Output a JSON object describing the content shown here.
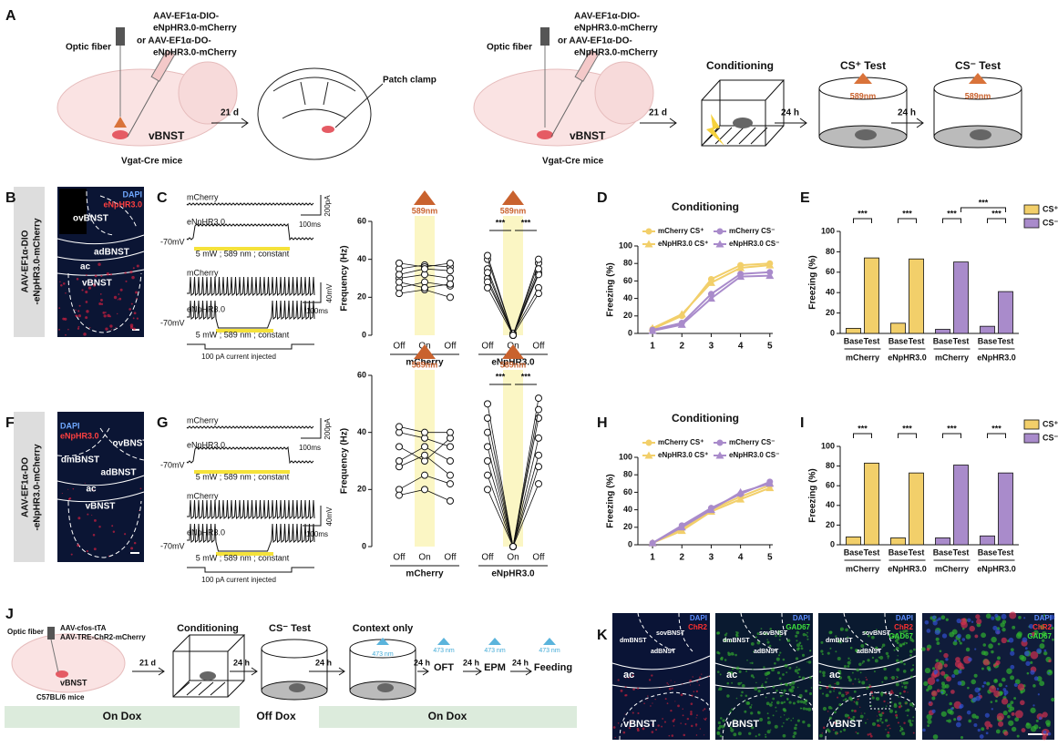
{
  "panel_labels": [
    "A",
    "B",
    "C",
    "D",
    "E",
    "F",
    "G",
    "H",
    "I",
    "J",
    "K"
  ],
  "a": {
    "left": {
      "optic_fiber": "Optic fiber",
      "virus": [
        "AAV-EF1α-DIO-",
        "eNpHR3.0-mCherry",
        "or AAV-EF1α-DO-",
        "eNpHR3.0-mCherry"
      ],
      "region": "vBNST",
      "mice": "Vgat-Cre mice",
      "delay": "21 d",
      "patch": "Patch clamp"
    },
    "right": {
      "optic_fiber": "Optic fiber",
      "virus": [
        "AAV-EF1α-DIO-",
        "eNpHR3.0-mCherry",
        "or AAV-EF1α-DO-",
        "eNpHR3.0-mCherry"
      ],
      "region": "vBNST",
      "mice": "Vgat-Cre mice",
      "delay": "21 d",
      "steps": [
        "Conditioning",
        "CS⁺ Test",
        "CS⁻ Test"
      ],
      "light": [
        "589nm",
        "589nm"
      ],
      "gaps": [
        "24 h",
        "24 h"
      ]
    }
  },
  "b": {
    "stains": [
      "DAPI",
      "eNpHR3.0"
    ],
    "regions": [
      "ovBNST",
      "adBNST",
      "ac",
      "vBNST"
    ],
    "construct": [
      "AAV-EF1α-DIO",
      "-eNpHR3.0-mCherry"
    ]
  },
  "c": {
    "traces": [
      "mCherry",
      "eNpHR3.0",
      "mCherry",
      "eNpHR3.0"
    ],
    "baselines": [
      "-70mV",
      "-70mV"
    ],
    "stimuli": [
      "5 mW ; 589 nm ; constant",
      "5 mW ; 589 nm ; constant"
    ],
    "scales": [
      "200pA",
      "100ms",
      "40mV",
      "100ms"
    ],
    "current": "100 pA current injected"
  },
  "f": {
    "stains": [
      "DAPI",
      "eNpHR3.0"
    ],
    "regions": [
      "ovBNST",
      "dmBNST",
      "adBNST",
      "ac",
      "vBNST"
    ],
    "construct": [
      "AAV-EF1α-DO",
      "-eNpHR3.0-mCherry"
    ]
  },
  "g": {
    "traces": [
      "mCherry",
      "eNpHR3.0",
      "mCherry",
      "eNpHR3.0"
    ],
    "baselines": [
      "-70mV",
      "-70mV"
    ],
    "stimuli": [
      "5 mW ; 589 nm ; constant",
      "5 mW ; 589 nm ; constant"
    ],
    "scales": [
      "200pA",
      "100ms",
      "40mV",
      "100ms"
    ],
    "current": "100 pA current injected"
  },
  "j": {
    "optic_fiber": "Optic fiber",
    "virus": [
      "AAV-cfos-tTA",
      "AAV-TRE-ChR2-mCherry"
    ],
    "region": "vBNST",
    "mice": "C57BL/6 mice",
    "delay": "21 d",
    "steps": [
      "Conditioning",
      "CS⁻ Test",
      "Context only",
      "OFT",
      "EPM",
      "Feeding"
    ],
    "gaps": [
      "24 h",
      "24 h",
      "24 h",
      "24 h",
      "24 h"
    ],
    "light": [
      "473 nm",
      "473 nm",
      "473 nm",
      "473 nm"
    ],
    "dox": [
      "On Dox",
      "Off Dox",
      "On Dox"
    ]
  },
  "k": {
    "images": [
      {
        "stains": [
          "DAPI",
          "ChR2"
        ],
        "colors": [
          "#5b8cff",
          "#ff3030"
        ],
        "regions": [
          "dmBNST",
          "sovBNST",
          "adBNST",
          "ac",
          "vBNST"
        ]
      },
      {
        "stains": [
          "DAPI",
          "GAD67"
        ],
        "colors": [
          "#5b8cff",
          "#3de03d"
        ],
        "regions": [
          "dmBNST",
          "sovBNST",
          "adBNST",
          "ac",
          "vBNST"
        ]
      },
      {
        "stains": [
          "DAPI",
          "ChR2",
          "GAD67"
        ],
        "colors": [
          "#5b8cff",
          "#ff3030",
          "#3de03d"
        ],
        "regions": [
          "dmBNST",
          "sovBNST",
          "adBNST",
          "ac",
          "vBNST"
        ]
      },
      {
        "stains": [
          "DAPI",
          "ChR2",
          "GAD67"
        ],
        "colors": [
          "#5b8cff",
          "#ff3030",
          "#3de03d"
        ]
      }
    ]
  },
  "chart_data": [
    {
      "type": "paired",
      "ylabel": "Frequency (Hz)",
      "ylim": [
        0,
        60
      ],
      "yticks": [
        0,
        20,
        40,
        60
      ],
      "band_color": "#fbf6c4",
      "light_color": "#c9622e",
      "groups": [
        {
          "name": "mCherry",
          "light": "589nm",
          "categories": [
            "Off",
            "On",
            "Off"
          ],
          "cells": [
            [
              30,
              32,
              30
            ],
            [
              25,
              28,
              26
            ],
            [
              35,
              37,
              36
            ],
            [
              22,
              24,
              20
            ],
            [
              38,
              36,
              38
            ],
            [
              28,
              25,
              27
            ],
            [
              32,
              35,
              34
            ]
          ]
        },
        {
          "name": "eNpHR3.0",
          "light": "589nm",
          "categories": [
            "Off",
            "On",
            "Off"
          ],
          "significance": [
            "***",
            "***"
          ],
          "cells": [
            [
              40,
              0,
              38
            ],
            [
              35,
              0,
              33
            ],
            [
              30,
              0,
              32
            ],
            [
              28,
              1,
              25
            ],
            [
              42,
              0,
              40
            ],
            [
              33,
              0,
              35
            ],
            [
              25,
              0,
              22
            ]
          ]
        }
      ]
    },
    {
      "type": "line",
      "title": "Conditioning",
      "ylabel": "Freezing (%)",
      "x": [
        1,
        2,
        3,
        4,
        5
      ],
      "xlim": [
        0.5,
        5.1
      ],
      "xticks": [
        1,
        2,
        3,
        4,
        5
      ],
      "ylim": [
        0,
        100
      ],
      "yticks": [
        0,
        20,
        40,
        60,
        80,
        100
      ],
      "series": [
        {
          "name": "mCherry CS⁺",
          "color": "#f2cf6a",
          "marker": "circle",
          "values": [
            5,
            20,
            62,
            78,
            80
          ]
        },
        {
          "name": "eNpHR3.0 CS⁺",
          "color": "#f2cf6a",
          "marker": "triangle",
          "values": [
            6,
            22,
            58,
            75,
            78
          ]
        },
        {
          "name": "mCherry CS⁻",
          "color": "#a98bcb",
          "marker": "circle",
          "values": [
            4,
            12,
            45,
            68,
            70
          ]
        },
        {
          "name": "eNpHR3.0 CS⁻",
          "color": "#a98bcb",
          "marker": "triangle",
          "values": [
            3,
            10,
            40,
            65,
            66
          ]
        }
      ]
    },
    {
      "type": "bar",
      "ylabel": "Freezing (%)",
      "ylim": [
        0,
        100
      ],
      "yticks": [
        0,
        20,
        40,
        60,
        80,
        100
      ],
      "categories": [
        "Base",
        "Test",
        "Base",
        "Test",
        "Base",
        "Test",
        "Base",
        "Test"
      ],
      "groups": [
        "mCherry",
        "eNpHR3.0",
        "mCherry",
        "eNpHR3.0"
      ],
      "values": [
        5,
        74,
        10,
        73,
        4,
        70,
        7,
        41
      ],
      "colors": [
        "#f2cf6a",
        "#f2cf6a",
        "#f2cf6a",
        "#f2cf6a",
        "#a98bcb",
        "#a98bcb",
        "#a98bcb",
        "#a98bcb"
      ],
      "significance": [
        "***",
        "***",
        "***",
        "***",
        "***"
      ],
      "legend": [
        {
          "name": "CS⁺",
          "color": "#f2cf6a"
        },
        {
          "name": "CS⁻",
          "color": "#a98bcb"
        }
      ]
    },
    {
      "type": "paired",
      "ylabel": "Frequency (Hz)",
      "ylim": [
        0,
        60
      ],
      "yticks": [
        0,
        20,
        40,
        60
      ],
      "band_color": "#fbf6c4",
      "light_color": "#c9622e",
      "groups": [
        {
          "name": "mCherry",
          "light": "589nm",
          "categories": [
            "Off",
            "On",
            "Off"
          ],
          "cells": [
            [
              40,
              38,
              35
            ],
            [
              35,
              30,
              38
            ],
            [
              28,
              32,
              25
            ],
            [
              20,
              25,
              22
            ],
            [
              42,
              40,
              40
            ],
            [
              30,
              35,
              30
            ],
            [
              18,
              20,
              16
            ]
          ]
        },
        {
          "name": "eNpHR3.0",
          "light": "589nm",
          "categories": [
            "Off",
            "On",
            "Off"
          ],
          "significance": [
            "***",
            "***"
          ],
          "cells": [
            [
              50,
              0,
              52
            ],
            [
              40,
              0,
              45
            ],
            [
              35,
              0,
              38
            ],
            [
              30,
              0,
              32
            ],
            [
              45,
              0,
              48
            ],
            [
              25,
              0,
              28
            ],
            [
              20,
              0,
              22
            ]
          ]
        }
      ]
    },
    {
      "type": "line",
      "title": "Conditioning",
      "ylabel": "Freezing (%)",
      "x": [
        1,
        2,
        3,
        4,
        5
      ],
      "xlim": [
        0.5,
        5.1
      ],
      "xticks": [
        1,
        2,
        3,
        4,
        5
      ],
      "ylim": [
        0,
        100
      ],
      "yticks": [
        0,
        20,
        40,
        60,
        80,
        100
      ],
      "series": [
        {
          "name": "mCherry CS⁺",
          "color": "#f2cf6a",
          "marker": "circle",
          "values": [
            2,
            18,
            40,
            55,
            68
          ]
        },
        {
          "name": "eNpHR3.0 CS⁺",
          "color": "#f2cf6a",
          "marker": "triangle",
          "values": [
            2,
            16,
            38,
            52,
            65
          ]
        },
        {
          "name": "mCherry CS⁻",
          "color": "#a98bcb",
          "marker": "circle",
          "values": [
            2,
            22,
            42,
            58,
            72
          ]
        },
        {
          "name": "eNpHR3.0 CS⁻",
          "color": "#a98bcb",
          "marker": "triangle",
          "values": [
            2,
            20,
            40,
            60,
            70
          ]
        }
      ]
    },
    {
      "type": "bar",
      "ylabel": "Freezing (%)",
      "ylim": [
        0,
        100
      ],
      "yticks": [
        0,
        20,
        40,
        60,
        80,
        100
      ],
      "categories": [
        "Base",
        "Test",
        "Base",
        "Test",
        "Base",
        "Test",
        "Base",
        "Test"
      ],
      "groups": [
        "mCherry",
        "eNpHR3.0",
        "mCherry",
        "eNpHR3.0"
      ],
      "values": [
        8,
        83,
        7,
        73,
        7,
        81,
        9,
        73
      ],
      "colors": [
        "#f2cf6a",
        "#f2cf6a",
        "#f2cf6a",
        "#f2cf6a",
        "#a98bcb",
        "#a98bcb",
        "#a98bcb",
        "#a98bcb"
      ],
      "significance": [
        "***",
        "***",
        "***",
        "***"
      ],
      "legend": [
        {
          "name": "CS⁺",
          "color": "#f2cf6a"
        },
        {
          "name": "CS⁻",
          "color": "#a98bcb"
        }
      ]
    }
  ]
}
